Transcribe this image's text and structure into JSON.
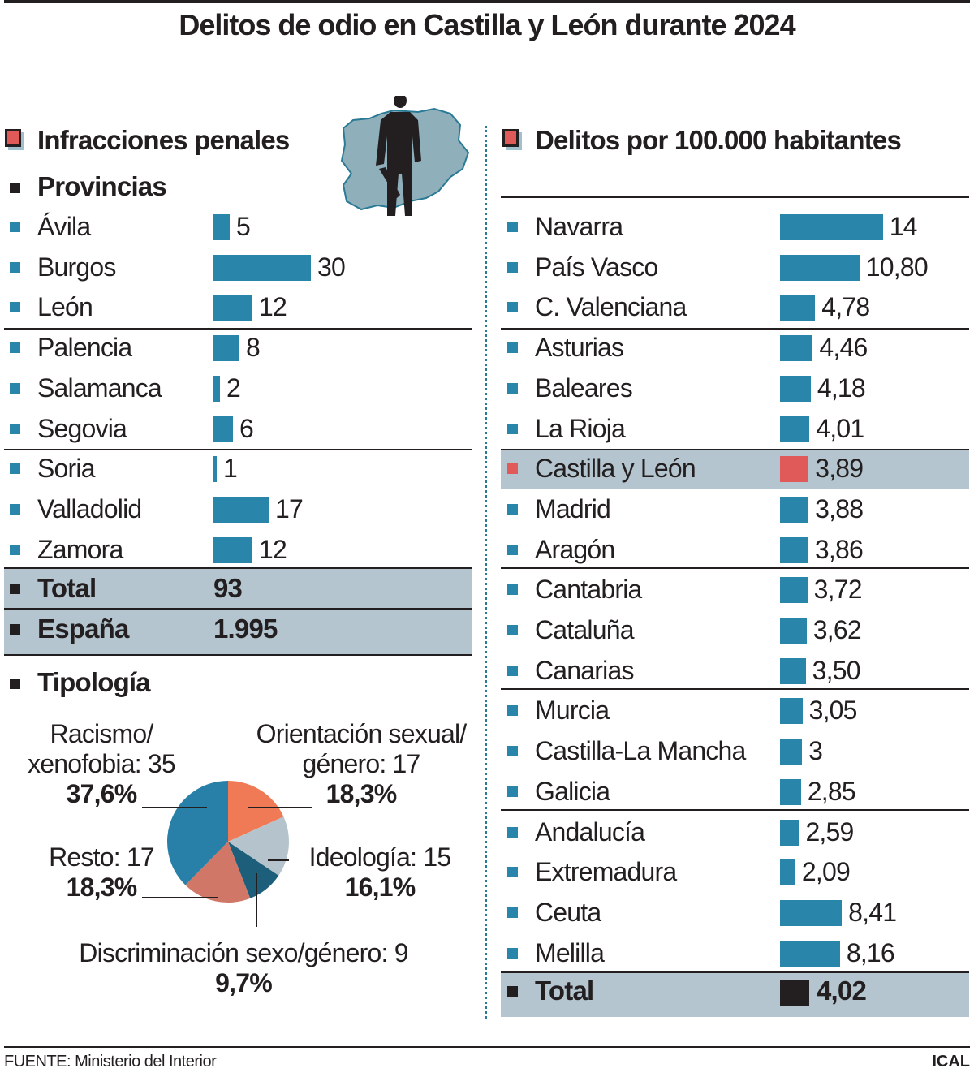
{
  "title": "Delitos de odio en Castilla y León durante 2024",
  "left": {
    "heading": "Infracciones penales",
    "subheading": "Provincias",
    "total_label": "Total",
    "total_value": "93",
    "spain_label": "España",
    "spain_value": "1.995",
    "tipologia_heading": "Tipología"
  },
  "right": {
    "heading": "Delitos por 100.000 habitantes",
    "total_label": "Total",
    "total_value": "4,02"
  },
  "colors": {
    "bar": "#2a85aa",
    "highlight": "#e05a5a",
    "band": "#b4c5cf",
    "total": "#231f20"
  },
  "chart_data": [
    {
      "type": "bar",
      "orientation": "horizontal",
      "categories": [
        "Ávila",
        "Burgos",
        "León",
        "Palencia",
        "Salamanca",
        "Segovia",
        "Soria",
        "Valladolid",
        "Zamora"
      ],
      "values": [
        5,
        30,
        12,
        8,
        2,
        6,
        1,
        17,
        12
      ],
      "labels": [
        "5",
        "30",
        "12",
        "8",
        "2",
        "6",
        "1",
        "17",
        "12"
      ]
    },
    {
      "type": "bar",
      "orientation": "horizontal",
      "categories": [
        "Navarra",
        "País Vasco",
        "C. Valenciana",
        "Asturias",
        "Baleares",
        "La Rioja",
        "Castilla y León",
        "Madrid",
        "Aragón",
        "Cantabria",
        "Cataluña",
        "Canarias",
        "Murcia",
        "Castilla-La Mancha",
        "Galicia",
        "Andalucía",
        "Extremadura",
        "Ceuta",
        "Melilla"
      ],
      "values": [
        14,
        10.8,
        4.78,
        4.46,
        4.18,
        4.01,
        3.89,
        3.88,
        3.86,
        3.72,
        3.62,
        3.5,
        3.05,
        3,
        2.85,
        2.59,
        2.09,
        8.41,
        8.16
      ],
      "labels": [
        "14",
        "10,80",
        "4,78",
        "4,46",
        "4,18",
        "4,01",
        "3,89",
        "3,88",
        "3,86",
        "3,72",
        "3,62",
        "3,50",
        "3,05",
        "3",
        "2,85",
        "2,59",
        "2,09",
        "8,41",
        "8,16"
      ],
      "highlight": "Castilla y León"
    },
    {
      "type": "pie",
      "slices": [
        {
          "name": "Orientación sexual/ género: 17",
          "label1": "Orientación sexual/",
          "label2": "género: 17",
          "value": 17,
          "pct": "18,3%",
          "color": "#f07a55"
        },
        {
          "name": "Ideología: 15",
          "label1": "Ideología: 15",
          "label2": "",
          "value": 15,
          "pct": "16,1%",
          "color": "#b5c4cc"
        },
        {
          "name": "Discriminación sexo/género: 9",
          "label1": "Discriminación sexo/género: 9",
          "label2": "",
          "value": 9,
          "pct": "9,7%",
          "color": "#1d5f7a"
        },
        {
          "name": "Resto: 17",
          "label1": "Resto: 17",
          "label2": "",
          "value": 17,
          "pct": "18,3%",
          "color": "#d07767"
        },
        {
          "name": "Racismo/ xenofobia: 35",
          "label1": "Racismo/",
          "label2": "xenofobia: 35",
          "value": 35,
          "pct": "37,6%",
          "color": "#2880a8"
        }
      ]
    }
  ],
  "footer": {
    "source": "FUENTE: Ministerio del Interior",
    "brand": "ICAL"
  }
}
